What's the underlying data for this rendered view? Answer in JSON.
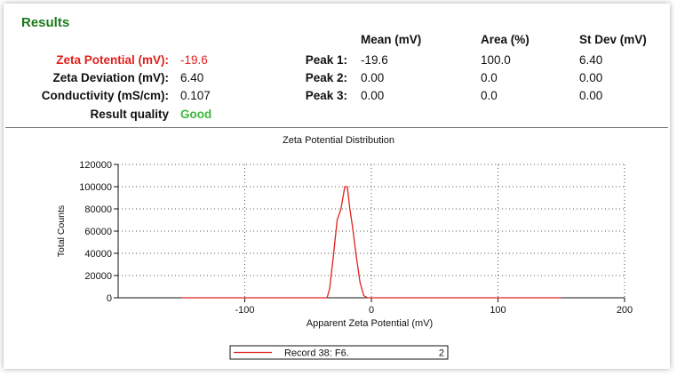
{
  "results": {
    "title": "Results",
    "headers": {
      "mean": "Mean (mV)",
      "area": "Area (%)",
      "stdev": "St Dev (mV)"
    },
    "summary": [
      {
        "label": "Zeta Potential (mV):",
        "value": "-19.6",
        "color": "#e0201c"
      },
      {
        "label": "Zeta Deviation (mV):",
        "value": "6.40"
      },
      {
        "label": "Conductivity (mS/cm):",
        "value": "0.107"
      },
      {
        "label": "Result quality",
        "value": "Good",
        "color": "#3db83d"
      }
    ],
    "peaks": [
      {
        "label": "Peak 1:",
        "mean": "-19.6",
        "area": "100.0",
        "stdev": "6.40"
      },
      {
        "label": "Peak 2:",
        "mean": "0.00",
        "area": "0.0",
        "stdev": "0.00"
      },
      {
        "label": "Peak 3:",
        "mean": "0.00",
        "area": "0.0",
        "stdev": "0.00"
      }
    ]
  },
  "chart_data": {
    "type": "line",
    "title": "Zeta Potential Distribution",
    "xlabel": "Apparent Zeta Potential (mV)",
    "ylabel": "Total Counts",
    "xlim": [
      -200,
      200
    ],
    "ylim": [
      0,
      120000
    ],
    "xticks": [
      -100,
      0,
      100,
      200
    ],
    "yticks": [
      0,
      20000,
      40000,
      60000,
      80000,
      100000,
      120000
    ],
    "grid": true,
    "series": [
      {
        "name": "Record 38: F6.",
        "legend_suffix": "2",
        "color": "#e0201c",
        "x": [
          -150,
          -40,
          -35,
          -33,
          -30,
          -27,
          -24,
          -21,
          -19,
          -17,
          -15,
          -12,
          -9,
          -6,
          -3,
          0,
          150
        ],
        "y": [
          0,
          0,
          0,
          8000,
          38000,
          70000,
          80000,
          100000,
          100000,
          80000,
          65000,
          38000,
          14000,
          2000,
          0,
          0,
          0
        ]
      }
    ],
    "legend_position": "bottom"
  }
}
